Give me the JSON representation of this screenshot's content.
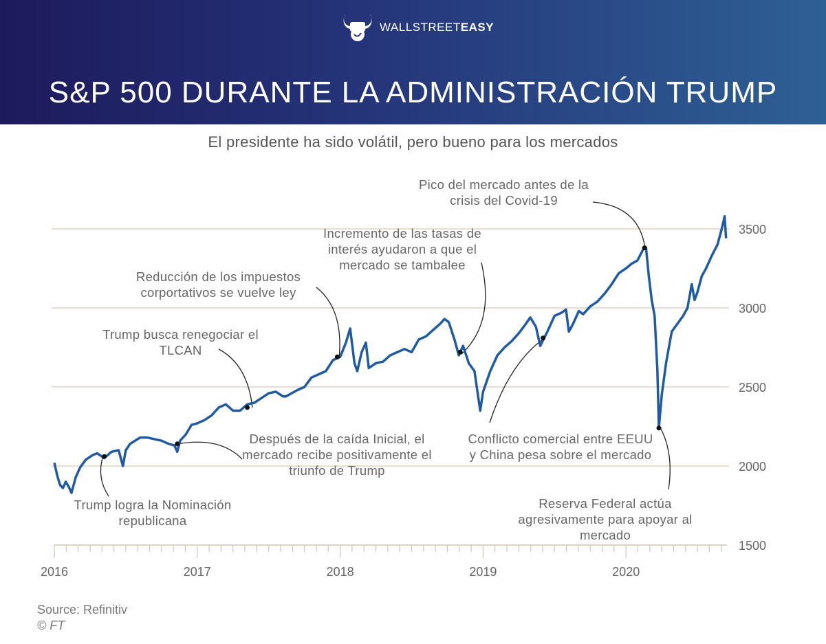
{
  "header": {
    "brand_light": "WALLSTREET",
    "brand_bold": "EASY",
    "title": "S&P 500 DURANTE LA ADMINISTRACIÓN TRUMP"
  },
  "subtitle": "El presidente ha sido volátil, pero bueno para los mercados",
  "footer": {
    "source": "Source: Refinitiv",
    "copyright": "© FT"
  },
  "colors": {
    "line": "#1f5aa3",
    "grid": "#e9ddd0",
    "header_start": "#1d1a5c",
    "header_end": "#2e6094"
  },
  "chart_data": {
    "type": "line",
    "title": "S&P 500 DURANTE LA ADMINISTRACIÓN TRUMP",
    "xlabel": "",
    "ylabel": "",
    "xlim": [
      2016.0,
      2020.71
    ],
    "ylim": [
      1500,
      3600
    ],
    "yticks": [
      1500,
      2000,
      2500,
      3000,
      3500
    ],
    "ytick_labels": [
      "1500",
      "2000",
      "2500",
      "3000",
      "3500"
    ],
    "xticks": [
      2016,
      2017,
      2018,
      2019,
      2020
    ],
    "xtick_labels": [
      "2016",
      "2017",
      "2018",
      "2019",
      "2020"
    ],
    "grid": "horizontal",
    "series": [
      {
        "name": "S&P 500",
        "x": [
          2016.0,
          2016.02,
          2016.04,
          2016.06,
          2016.08,
          2016.1,
          2016.12,
          2016.15,
          2016.18,
          2016.22,
          2016.27,
          2016.3,
          2016.35,
          2016.4,
          2016.45,
          2016.48,
          2016.5,
          2016.53,
          2016.6,
          2016.65,
          2016.7,
          2016.75,
          2016.8,
          2016.84,
          2016.86,
          2016.88,
          2016.92,
          2016.96,
          2017.0,
          2017.05,
          2017.1,
          2017.15,
          2017.2,
          2017.25,
          2017.3,
          2017.35,
          2017.4,
          2017.45,
          2017.5,
          2017.55,
          2017.6,
          2017.62,
          2017.7,
          2017.75,
          2017.8,
          2017.85,
          2017.9,
          2017.95,
          2018.0,
          2018.04,
          2018.07,
          2018.1,
          2018.12,
          2018.15,
          2018.18,
          2018.2,
          2018.25,
          2018.3,
          2018.35,
          2018.4,
          2018.45,
          2018.5,
          2018.55,
          2018.6,
          2018.65,
          2018.7,
          2018.73,
          2018.76,
          2018.8,
          2018.83,
          2018.86,
          2018.9,
          2018.94,
          2018.98,
          2019.0,
          2019.05,
          2019.1,
          2019.15,
          2019.2,
          2019.25,
          2019.3,
          2019.33,
          2019.37,
          2019.4,
          2019.45,
          2019.5,
          2019.55,
          2019.58,
          2019.6,
          2019.63,
          2019.67,
          2019.7,
          2019.75,
          2019.8,
          2019.85,
          2019.9,
          2019.95,
          2020.0,
          2020.04,
          2020.08,
          2020.12,
          2020.14,
          2020.16,
          2020.18,
          2020.2,
          2020.22,
          2020.23,
          2020.25,
          2020.28,
          2020.32,
          2020.36,
          2020.4,
          2020.43,
          2020.46,
          2020.48,
          2020.5,
          2020.53,
          2020.56,
          2020.6,
          2020.64,
          2020.67,
          2020.69,
          2020.7
        ],
        "y": [
          2020,
          1940,
          1880,
          1860,
          1900,
          1870,
          1830,
          1930,
          1990,
          2040,
          2070,
          2080,
          2050,
          2090,
          2100,
          2000,
          2100,
          2140,
          2180,
          2180,
          2170,
          2160,
          2140,
          2130,
          2090,
          2160,
          2200,
          2260,
          2270,
          2290,
          2320,
          2370,
          2390,
          2350,
          2350,
          2390,
          2400,
          2430,
          2460,
          2470,
          2440,
          2440,
          2480,
          2500,
          2560,
          2580,
          2600,
          2670,
          2690,
          2780,
          2870,
          2650,
          2600,
          2720,
          2780,
          2620,
          2650,
          2660,
          2700,
          2720,
          2740,
          2720,
          2800,
          2820,
          2860,
          2900,
          2930,
          2910,
          2800,
          2700,
          2760,
          2650,
          2600,
          2350,
          2470,
          2600,
          2700,
          2750,
          2790,
          2840,
          2900,
          2940,
          2880,
          2760,
          2850,
          2950,
          2970,
          2990,
          2850,
          2900,
          2980,
          2960,
          3010,
          3040,
          3090,
          3150,
          3220,
          3250,
          3280,
          3300,
          3370,
          3380,
          3200,
          3050,
          2950,
          2600,
          2240,
          2450,
          2650,
          2850,
          2900,
          2950,
          3000,
          3150,
          3050,
          3100,
          3200,
          3250,
          3330,
          3400,
          3500,
          3580,
          3440
        ]
      }
    ],
    "annotations": [
      {
        "id": "nomination",
        "text": "Trump logra la Nominación republicana",
        "x": 2016.35,
        "y": 2060
      },
      {
        "id": "election",
        "text": "Después de la caída Inicial, el mercado recibe positivamente el triunfo de Trump",
        "x": 2016.86,
        "y": 2140
      },
      {
        "id": "nafta",
        "text": "Trump busca renegociar el TLCAN",
        "x": 2017.35,
        "y": 2370
      },
      {
        "id": "tax",
        "text": "Reducción de los impuestos corportativos se vuelve ley",
        "x": 2017.98,
        "y": 2690
      },
      {
        "id": "rates",
        "text": "Incremento de las tasas de interés ayudaron a que el mercado se tambalee",
        "x": 2018.84,
        "y": 2720
      },
      {
        "id": "trade",
        "text": "Conflicto comercial entre EEUU y China pesa sobre el mercado",
        "x": 2019.42,
        "y": 2810
      },
      {
        "id": "peak",
        "text": "Pico del mercado antes de la crisis del Covid-19",
        "x": 2020.13,
        "y": 3380
      },
      {
        "id": "fed",
        "text": "Reserva Federal actúa agresivamente para apoyar al mercado",
        "x": 2020.23,
        "y": 2240
      }
    ]
  }
}
